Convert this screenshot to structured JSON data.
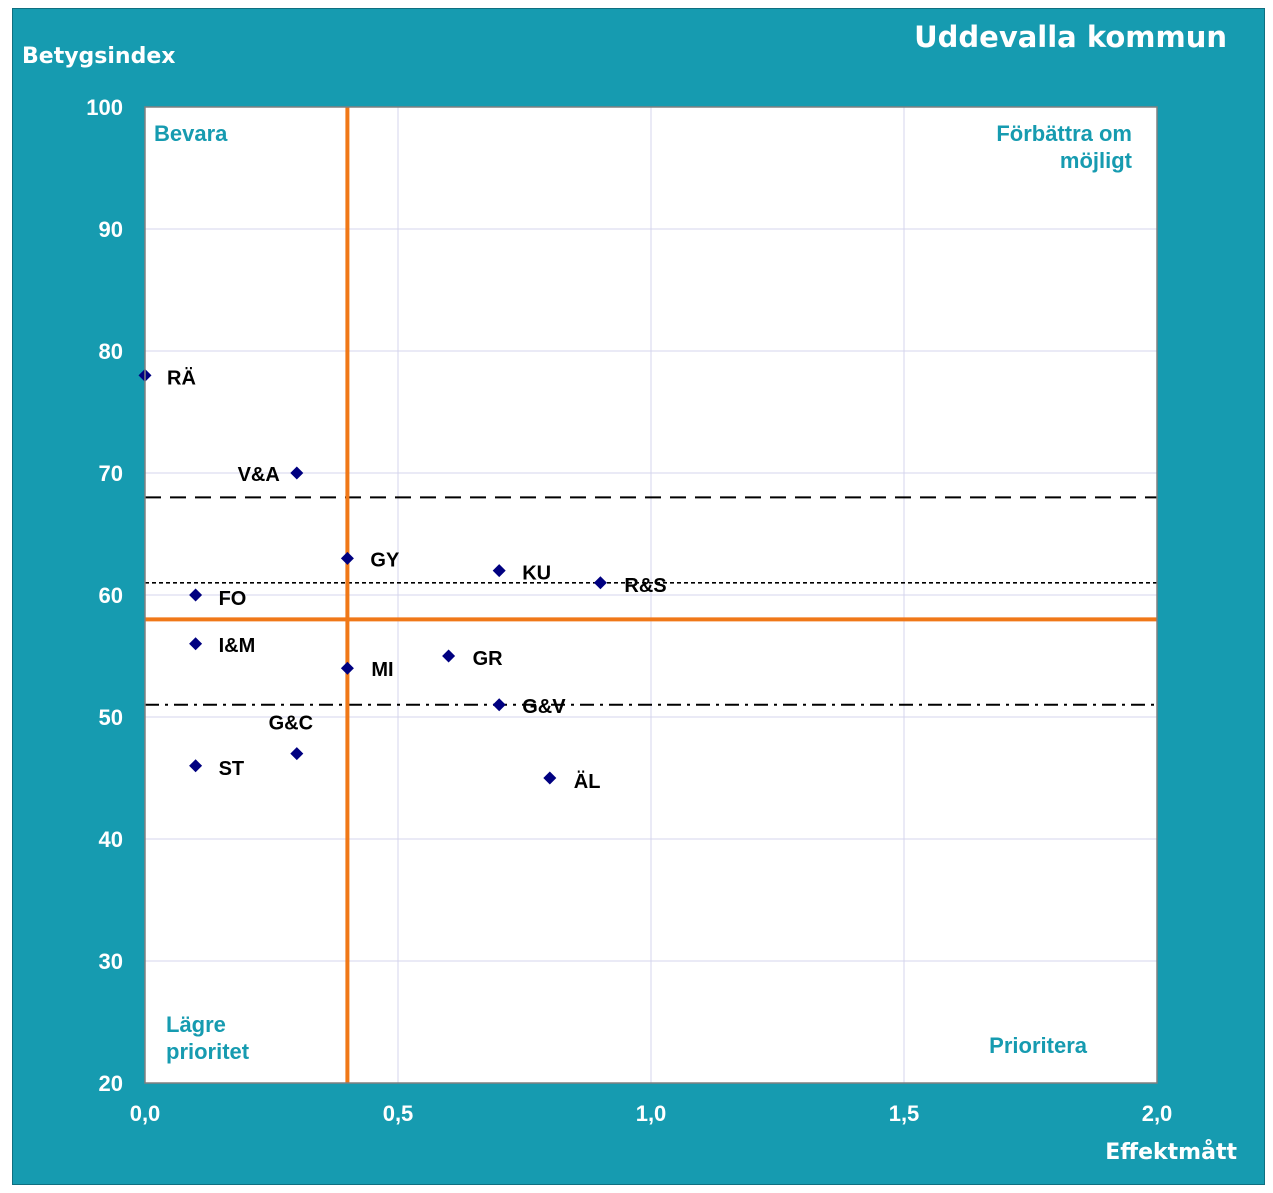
{
  "chart_data": {
    "type": "scatter",
    "title": "Uddevalla kommun",
    "xlabel": "Effektmått",
    "ylabel": "Betygsindex",
    "xlim": [
      0,
      2
    ],
    "ylim": [
      20,
      100
    ],
    "x_ticks": [
      "0,0",
      "0,5",
      "1,0",
      "1,5",
      "2,0"
    ],
    "y_ticks": [
      "20",
      "30",
      "40",
      "50",
      "60",
      "70",
      "80",
      "90",
      "100"
    ],
    "grid": true,
    "points": [
      {
        "label": "RÄ",
        "x": 0.0,
        "y": 78
      },
      {
        "label": "V&A",
        "x": 0.3,
        "y": 70
      },
      {
        "label": "GY",
        "x": 0.4,
        "y": 63
      },
      {
        "label": "KU",
        "x": 0.7,
        "y": 62
      },
      {
        "label": "R&S",
        "x": 0.9,
        "y": 61
      },
      {
        "label": "FO",
        "x": 0.1,
        "y": 60
      },
      {
        "label": "I&M",
        "x": 0.1,
        "y": 56
      },
      {
        "label": "GR",
        "x": 0.6,
        "y": 55
      },
      {
        "label": "MI",
        "x": 0.4,
        "y": 54
      },
      {
        "label": "G&V",
        "x": 0.7,
        "y": 51
      },
      {
        "label": "G&C",
        "x": 0.3,
        "y": 47
      },
      {
        "label": "ST",
        "x": 0.1,
        "y": 46
      },
      {
        "label": "ÄL",
        "x": 0.8,
        "y": 45
      }
    ],
    "reference_lines": {
      "vertical_x": 0.4,
      "horizontal_y": 58,
      "dashed_y": 68,
      "dotted_y": 61,
      "dashdot_y": 51
    },
    "quadrant_labels": {
      "top_left": "Bevara",
      "top_right": "Förbättra om möjligt",
      "bottom_left": "Lägre prioritet",
      "bottom_right": "Prioritera"
    },
    "colors": {
      "background": "#169bb0",
      "plot": "#ffffff",
      "marker": "#000080",
      "reference": "#f07818",
      "quadrant_text": "#169bb0",
      "grid": "#d4d4ec"
    }
  }
}
